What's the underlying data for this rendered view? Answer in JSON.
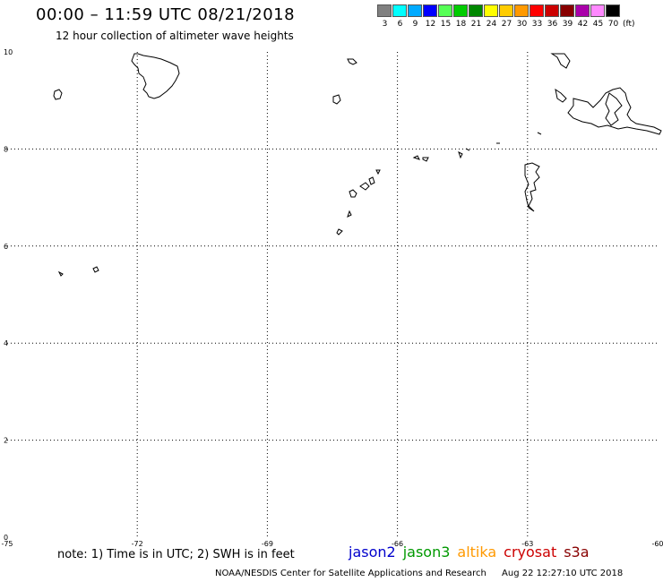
{
  "header": {
    "title": "00:00 – 11:59 UTC 08/21/2018",
    "subtitle": "12 hour collection of altimeter wave heights"
  },
  "colorbar": {
    "colors": [
      "#808080",
      "#00ffff",
      "#00aaff",
      "#0000ff",
      "#55ff55",
      "#00cc00",
      "#008800",
      "#ffff00",
      "#ffcc00",
      "#ff9900",
      "#ff0000",
      "#cc0000",
      "#880000",
      "#aa00aa",
      "#ff88ff",
      "#000000"
    ],
    "labels": [
      "3",
      "6",
      "9",
      "12",
      "15",
      "18",
      "21",
      "24",
      "27",
      "30",
      "33",
      "36",
      "39",
      "42",
      "45",
      "70"
    ],
    "unit": "(ft)"
  },
  "axes": {
    "x_ticks": [
      "-75",
      "-72",
      "-69",
      "-66",
      "-63",
      "-60"
    ],
    "y_ticks": [
      "10",
      "8",
      "6",
      "4",
      "2",
      "0"
    ]
  },
  "legend": {
    "note": "note: 1) Time is in UTC; 2) SWH is in feet",
    "satellites": [
      {
        "name": "jason2",
        "color": "#0000cc"
      },
      {
        "name": "jason3",
        "color": "#009900"
      },
      {
        "name": "altika",
        "color": "#ff9900"
      },
      {
        "name": "cryosat",
        "color": "#cc0000"
      },
      {
        "name": "s3a",
        "color": "#880000"
      }
    ]
  },
  "footer": {
    "credit": "NOAA/NESDIS Center for Satellite Applications and Research",
    "timestamp": "Aug 22 12:27:10 UTC 2018"
  }
}
